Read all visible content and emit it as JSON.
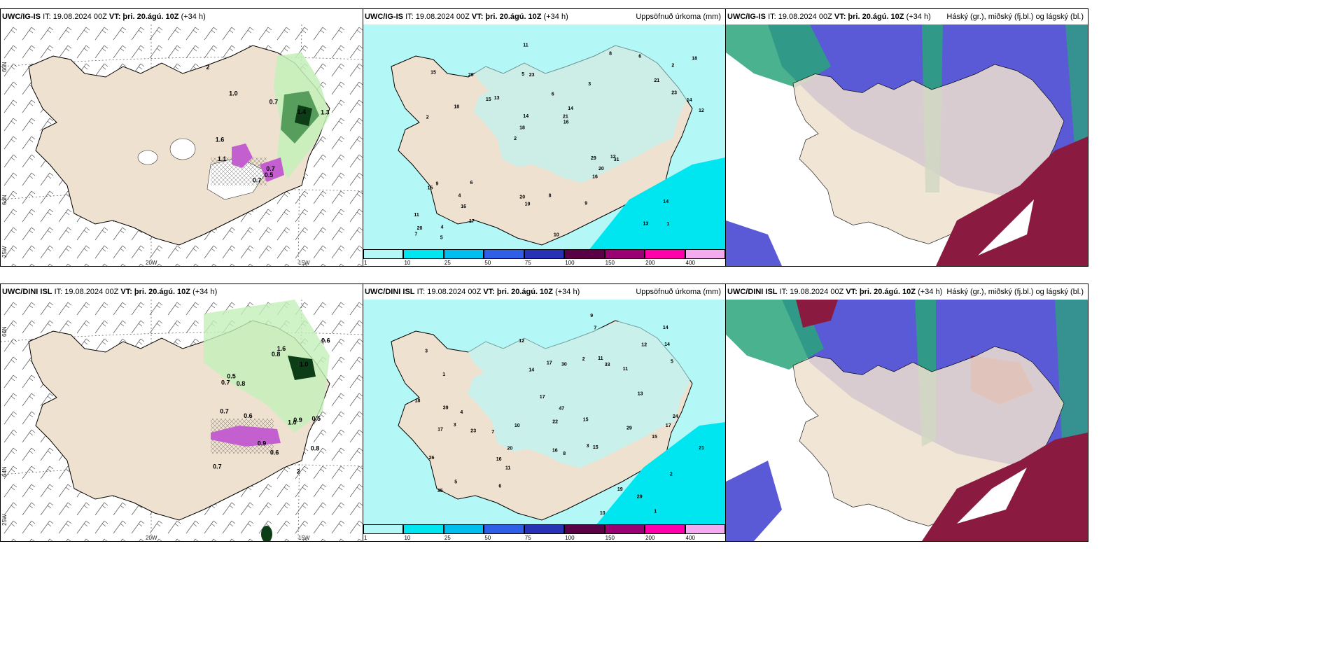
{
  "panels": [
    {
      "id": "p1",
      "model": "UWC/IG-IS",
      "it": "IT: 19.08.2024 00Z",
      "vt_label": "VT:",
      "vt": "þri. 20.ágú. 10Z",
      "lead": "(+34 h)",
      "right_title": "",
      "type": "wind"
    },
    {
      "id": "p2",
      "model": "UWC/IG-IS",
      "it": "IT: 19.08.2024 00Z",
      "vt_label": "VT:",
      "vt": "þri. 20.ágú. 10Z",
      "lead": "(+34 h)",
      "right_title": "Uppsöfnuð úrkoma (mm)",
      "type": "precip"
    },
    {
      "id": "p3",
      "model": "UWC/IG-IS",
      "it": "IT: 19.08.2024 00Z",
      "vt_label": "VT:",
      "vt": "þri. 20.ágú. 10Z",
      "lead": "(+34 h)",
      "right_title": "Háský (gr.), miðský (fj.bl.) og lágský (bl.)",
      "type": "cloud"
    },
    {
      "id": "p4",
      "model": "UWC/DINI ISL",
      "it": "IT: 19.08.2024 00Z",
      "vt_label": "VT:",
      "vt": "þri. 20.ágú. 10Z",
      "lead": "(+34 h)",
      "right_title": "",
      "type": "wind"
    },
    {
      "id": "p5",
      "model": "UWC/DINI ISL",
      "it": "IT: 19.08.2024 00Z",
      "vt_label": "VT:",
      "vt": "þri. 20.ágú. 10Z",
      "lead": "(+34 h)",
      "right_title": "Uppsöfnuð úrkoma (mm)",
      "type": "precip"
    },
    {
      "id": "p6",
      "model": "UWC/DINI ISL",
      "it": "IT: 19.08.2024 00Z",
      "vt_label": "VT:",
      "vt": "þri. 20.ágú. 10Z",
      "lead": "(+34 h)",
      "right_title": "Háský (gr.), miðský (fj.bl.) og lágský (bl.)",
      "type": "cloud"
    }
  ],
  "axis_labels": {
    "lat66": "66N",
    "lat64": "64N",
    "lon25": "25W",
    "lon20": "20W",
    "lon15": "15W"
  },
  "colorbar": {
    "ticks": [
      "1",
      "10",
      "25",
      "50",
      "75",
      "100",
      "150",
      "200",
      "400"
    ],
    "colors": [
      "#b4f7f7",
      "#00e6f0",
      "#00bfee",
      "#2f5fe6",
      "#2832b4",
      "#5a0046",
      "#9b0073",
      "#ff00aa",
      "#f3aaef"
    ]
  },
  "precip_labels_top": [
    "1",
    "2",
    "2",
    "2",
    "3",
    "4",
    "5",
    "6",
    "9",
    "13",
    "11",
    "16",
    "23",
    "14",
    "31",
    "15",
    "11",
    "12",
    "29",
    "23",
    "18",
    "20",
    "14",
    "20",
    "8",
    "6",
    "13",
    "14",
    "12",
    "10",
    "15",
    "18",
    "16",
    "17",
    "14",
    "21",
    "20",
    "19",
    "16",
    "15",
    "21",
    "18",
    "20",
    "9",
    "4",
    "5",
    "7",
    "8",
    "6"
  ],
  "precip_labels_bottom": [
    "1",
    "3",
    "3",
    "3",
    "2",
    "1",
    "5",
    "7",
    "11",
    "17",
    "33",
    "29",
    "11",
    "12",
    "15",
    "26",
    "29",
    "47",
    "18",
    "35",
    "14",
    "30",
    "13",
    "21",
    "24",
    "39",
    "23",
    "22",
    "17",
    "14",
    "15",
    "17",
    "16",
    "11",
    "14",
    "15",
    "17",
    "19",
    "12",
    "10",
    "20",
    "8",
    "6",
    "9",
    "10",
    "4",
    "5",
    "7",
    "2",
    "16"
  ],
  "wind_labels_top": [
    "0.7",
    "0.7",
    "0.7",
    "2",
    "1.3",
    "1.1",
    "0.5",
    "1.6",
    "1.4",
    "1.0"
  ],
  "wind_labels_bottom": [
    "0.8",
    "1.0",
    "0.6",
    "0.7",
    "0.5",
    "0.9",
    "1.0",
    "0.8",
    "0.6",
    "0.5",
    "0.7",
    "0.6",
    "2",
    "0.8",
    "0.7",
    "0.9",
    "1.6"
  ]
}
